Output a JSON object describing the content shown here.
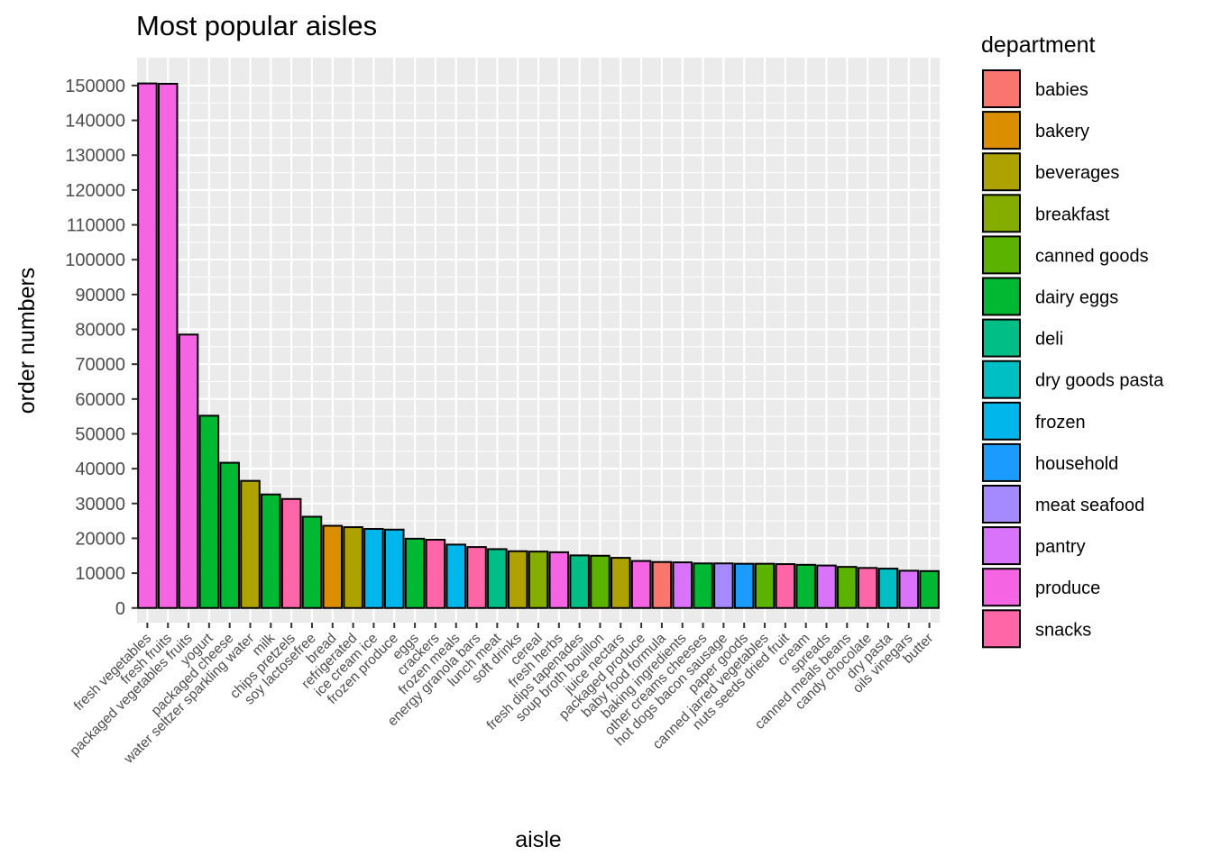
{
  "chart_data": {
    "type": "bar",
    "title": "Most popular aisles",
    "xlabel": "aisle",
    "ylabel": "order numbers",
    "ylim": [
      -4200,
      158000
    ],
    "yticks": [
      0,
      10000,
      20000,
      30000,
      40000,
      50000,
      60000,
      70000,
      80000,
      90000,
      100000,
      110000,
      120000,
      130000,
      140000,
      150000
    ],
    "grid": true,
    "legend": {
      "title": "department",
      "position": "right",
      "items": [
        {
          "label": "babies",
          "color": "#F8766D"
        },
        {
          "label": "bakery",
          "color": "#DB8E00"
        },
        {
          "label": "beverages",
          "color": "#AEA200"
        },
        {
          "label": "breakfast",
          "color": "#85AD00"
        },
        {
          "label": "canned goods",
          "color": "#5BB300"
        },
        {
          "label": "dairy eggs",
          "color": "#00B831"
        },
        {
          "label": "deli",
          "color": "#00BE85"
        },
        {
          "label": "dry goods pasta",
          "color": "#00BFC4"
        },
        {
          "label": "frozen",
          "color": "#00B6EB"
        },
        {
          "label": "household",
          "color": "#1C9BFF"
        },
        {
          "label": "meat seafood",
          "color": "#A58AFF"
        },
        {
          "label": "pantry",
          "color": "#D973FB"
        },
        {
          "label": "produce",
          "color": "#F564E3"
        },
        {
          "label": "snacks",
          "color": "#FF66A8"
        }
      ]
    },
    "categories": [
      "fresh vegetables",
      "fresh fruits",
      "packaged vegetables fruits",
      "yogurt",
      "packaged cheese",
      "water seltzer sparkling water",
      "milk",
      "chips pretzels",
      "soy lactosefree",
      "bread",
      "refrigerated",
      "ice cream ice",
      "frozen produce",
      "eggs",
      "crackers",
      "frozen meals",
      "energy granola bars",
      "lunch meat",
      "soft drinks",
      "cereal",
      "fresh herbs",
      "fresh dips tapenades",
      "soup broth bouillon",
      "juice nectars",
      "packaged produce",
      "baby food formula",
      "baking ingredients",
      "other creams cheeses",
      "hot dogs bacon sausage",
      "paper goods",
      "canned jarred vegetables",
      "nuts seeds dried fruit",
      "cream",
      "spreads",
      "canned meals beans",
      "candy chocolate",
      "dry pasta",
      "oils vinegars",
      "butter"
    ],
    "values": [
      150600,
      150500,
      78500,
      55200,
      41700,
      36500,
      32600,
      31300,
      26200,
      23600,
      23200,
      22700,
      22500,
      19900,
      19600,
      18200,
      17500,
      16900,
      16300,
      16200,
      16000,
      15100,
      15000,
      14400,
      13500,
      13200,
      13100,
      12800,
      12800,
      12700,
      12700,
      12600,
      12400,
      12200,
      11800,
      11500,
      11300,
      10700,
      10600
    ],
    "departments": [
      "produce",
      "produce",
      "produce",
      "dairy eggs",
      "dairy eggs",
      "beverages",
      "dairy eggs",
      "snacks",
      "dairy eggs",
      "bakery",
      "beverages",
      "frozen",
      "frozen",
      "dairy eggs",
      "snacks",
      "frozen",
      "snacks",
      "deli",
      "beverages",
      "breakfast",
      "produce",
      "deli",
      "canned goods",
      "beverages",
      "produce",
      "babies",
      "pantry",
      "dairy eggs",
      "meat seafood",
      "household",
      "canned goods",
      "snacks",
      "dairy eggs",
      "pantry",
      "canned goods",
      "snacks",
      "dry goods pasta",
      "pantry",
      "dairy eggs"
    ]
  }
}
